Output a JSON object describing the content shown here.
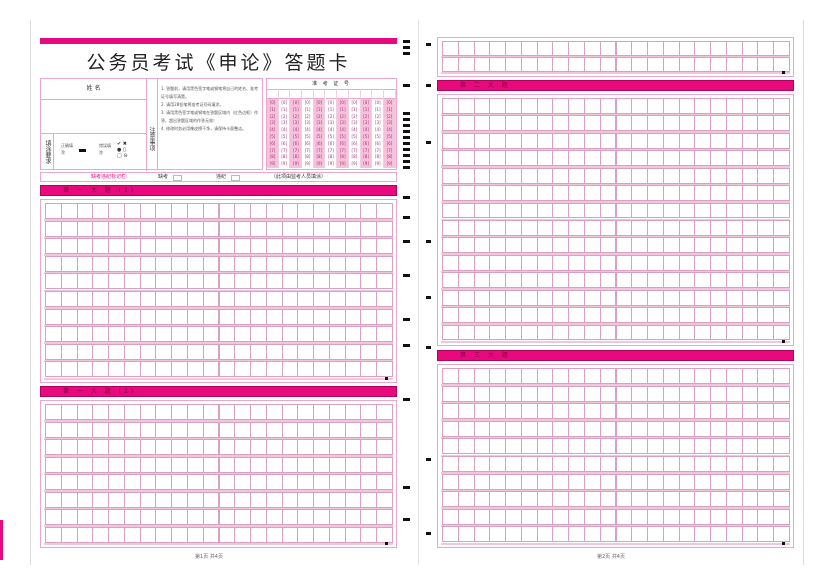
{
  "title": "公务员考试《申论》答题卡",
  "info": {
    "name_label": "姓 名",
    "fill_req_label": "填涂要求",
    "correct_label": "正确填涂",
    "wrong_label": "错误填涂",
    "notes_label": "注意事项",
    "notes": [
      "1. 答题前，请用黑色签字笔或钢笔将自己的姓名、准考证号填写清楚。",
      "2. 请用2B铅笔将准考证号码填涂。",
      "3. 请用黑色签字笔或钢笔在答题区域内（红色边框）作答，超出答题区域的作答无效！",
      "4. 修改时务必用橡皮擦干净，请保持卡面整洁。"
    ],
    "exam_number_label": "准 考 证 号",
    "digits": [
      "0",
      "1",
      "2",
      "3",
      "4",
      "5",
      "6",
      "7",
      "8",
      "9"
    ]
  },
  "absence": {
    "label": "缺考违纪标记栏:",
    "absent": "缺考",
    "violation": "违纪",
    "note": "（此项由监考人员填涂）"
  },
  "sections": {
    "s1a": "第 一 大 题 (1)",
    "s1b": "第 一 大 题 (2)",
    "s2": "第 二 大 题",
    "s3": "第 三 大 题"
  },
  "footer": {
    "page1": "第1页  共4页",
    "page2": "第2页  共4页"
  },
  "colors": {
    "accent": "#e8097f",
    "grid": "#d9a0c2",
    "bubble": "#f7c1dc"
  }
}
